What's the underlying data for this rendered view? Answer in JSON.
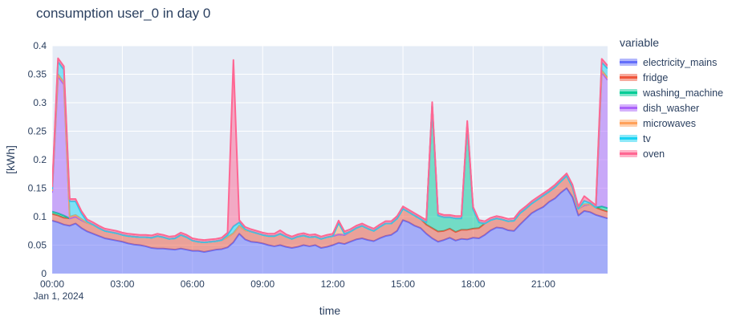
{
  "title": "consumption user_0 in day 0",
  "chart_data": {
    "type": "area",
    "stacked": true,
    "title": "consumption user_0 in day 0",
    "xlabel": "time",
    "ylabel": "[kWh]",
    "legend_title": "variable",
    "x_date_label": "Jan 1, 2024",
    "x_start": "00:00",
    "x_step_minutes": 15,
    "n_points": 96,
    "x_span_hours": 23.75,
    "ylim": [
      0,
      0.4
    ],
    "ytick_values": [
      0,
      0.05,
      0.1,
      0.15,
      0.2,
      0.25,
      0.3,
      0.35,
      0.4
    ],
    "ytick_labels": [
      "0",
      "0.05",
      "0.1",
      "0.15",
      "0.2",
      "0.25",
      "0.3",
      "0.35",
      "0.4"
    ],
    "xtick_hours": [
      0,
      3,
      6,
      9,
      12,
      15,
      18,
      21
    ],
    "xtick_labels": [
      "00:00",
      "03:00",
      "06:00",
      "09:00",
      "12:00",
      "15:00",
      "18:00",
      "21:00"
    ],
    "plot_bg": "#E5ECF6",
    "grid_color": "#FFFFFF",
    "text_color": "#2a3f5f",
    "fill_opacity": 0.5,
    "line_width": 2,
    "series": [
      {
        "name": "electricity_mains",
        "color": "#636EFA",
        "values": [
          0.093,
          0.09,
          0.086,
          0.084,
          0.088,
          0.08,
          0.074,
          0.07,
          0.066,
          0.062,
          0.06,
          0.058,
          0.056,
          0.053,
          0.051,
          0.05,
          0.048,
          0.045,
          0.044,
          0.044,
          0.043,
          0.042,
          0.044,
          0.042,
          0.04,
          0.04,
          0.038,
          0.04,
          0.042,
          0.043,
          0.046,
          0.055,
          0.07,
          0.06,
          0.056,
          0.055,
          0.053,
          0.05,
          0.048,
          0.05,
          0.047,
          0.045,
          0.047,
          0.05,
          0.048,
          0.05,
          0.045,
          0.047,
          0.05,
          0.054,
          0.052,
          0.056,
          0.06,
          0.062,
          0.059,
          0.057,
          0.062,
          0.066,
          0.068,
          0.075,
          0.094,
          0.09,
          0.084,
          0.08,
          0.07,
          0.062,
          0.056,
          0.059,
          0.063,
          0.058,
          0.061,
          0.06,
          0.063,
          0.062,
          0.068,
          0.076,
          0.081,
          0.08,
          0.076,
          0.075,
          0.086,
          0.096,
          0.106,
          0.112,
          0.117,
          0.126,
          0.132,
          0.142,
          0.15,
          0.134,
          0.102,
          0.11,
          0.108,
          0.103,
          0.1,
          0.097
        ]
      },
      {
        "name": "fridge",
        "color": "#EF553B",
        "values": [
          0.012,
          0.012,
          0.012,
          0.013,
          0.012,
          0.014,
          0.015,
          0.016,
          0.014,
          0.013,
          0.013,
          0.013,
          0.012,
          0.013,
          0.014,
          0.014,
          0.016,
          0.018,
          0.022,
          0.02,
          0.018,
          0.02,
          0.024,
          0.022,
          0.018,
          0.016,
          0.017,
          0.016,
          0.015,
          0.016,
          0.018,
          0.016,
          0.014,
          0.016,
          0.018,
          0.016,
          0.015,
          0.016,
          0.018,
          0.02,
          0.018,
          0.016,
          0.018,
          0.017,
          0.016,
          0.015,
          0.016,
          0.017,
          0.016,
          0.015,
          0.016,
          0.018,
          0.02,
          0.022,
          0.02,
          0.018,
          0.02,
          0.022,
          0.02,
          0.022,
          0.02,
          0.018,
          0.018,
          0.016,
          0.016,
          0.018,
          0.018,
          0.016,
          0.016,
          0.015,
          0.016,
          0.017,
          0.016,
          0.018,
          0.02,
          0.018,
          0.016,
          0.015,
          0.016,
          0.018,
          0.02,
          0.018,
          0.017,
          0.018,
          0.02,
          0.018,
          0.02,
          0.02,
          0.022,
          0.018,
          0.012,
          0.01,
          0.014,
          0.013,
          0.012,
          0.012
        ]
      },
      {
        "name": "washing_machine",
        "color": "#00CC96",
        "values": [
          0.004,
          0.004,
          0.004,
          0,
          0,
          0,
          0,
          0,
          0,
          0,
          0,
          0,
          0,
          0,
          0,
          0,
          0,
          0,
          0,
          0,
          0,
          0,
          0,
          0,
          0,
          0,
          0,
          0,
          0,
          0,
          0,
          0,
          0,
          0,
          0,
          0,
          0,
          0,
          0,
          0,
          0,
          0,
          0,
          0,
          0,
          0,
          0,
          0,
          0,
          0,
          0,
          0,
          0,
          0,
          0,
          0,
          0,
          0,
          0,
          0,
          0,
          0,
          0,
          0,
          0.004,
          0.215,
          0.028,
          0.024,
          0.02,
          0.024,
          0.02,
          0.185,
          0.034,
          0.01,
          0,
          0,
          0,
          0,
          0,
          0,
          0,
          0,
          0,
          0,
          0,
          0,
          0,
          0,
          0,
          0,
          0,
          0,
          0,
          0,
          0.006,
          0.006
        ]
      },
      {
        "name": "dish_washer",
        "color": "#AB63FA",
        "values": [
          0.033,
          0.24,
          0.23,
          0,
          0,
          0,
          0,
          0,
          0,
          0,
          0,
          0,
          0,
          0,
          0,
          0,
          0,
          0,
          0,
          0,
          0,
          0,
          0,
          0,
          0,
          0,
          0,
          0,
          0,
          0,
          0,
          0,
          0,
          0,
          0,
          0,
          0,
          0,
          0,
          0,
          0,
          0,
          0,
          0,
          0,
          0,
          0,
          0,
          0,
          0,
          0,
          0,
          0,
          0,
          0,
          0,
          0,
          0,
          0,
          0,
          0,
          0,
          0,
          0,
          0,
          0,
          0,
          0,
          0,
          0,
          0,
          0,
          0,
          0,
          0,
          0,
          0,
          0,
          0,
          0,
          0,
          0,
          0,
          0,
          0,
          0,
          0,
          0,
          0,
          0,
          0,
          0,
          0,
          0,
          0.235,
          0.225
        ]
      },
      {
        "name": "microwaves",
        "color": "#FFA15A",
        "values": [
          0.003,
          0.004,
          0.004,
          0.003,
          0.003,
          0.002,
          0,
          0,
          0,
          0,
          0,
          0,
          0,
          0,
          0,
          0,
          0,
          0,
          0,
          0,
          0,
          0,
          0,
          0,
          0,
          0,
          0,
          0,
          0,
          0,
          0,
          0,
          0,
          0,
          0,
          0,
          0,
          0,
          0,
          0,
          0,
          0,
          0,
          0,
          0,
          0,
          0,
          0,
          0,
          0.02,
          0.002,
          0,
          0,
          0,
          0,
          0,
          0,
          0,
          0,
          0,
          0,
          0,
          0,
          0,
          0,
          0,
          0,
          0,
          0,
          0,
          0,
          0,
          0,
          0,
          0,
          0,
          0,
          0,
          0,
          0,
          0,
          0,
          0,
          0,
          0,
          0,
          0,
          0,
          0,
          0,
          0,
          0.002,
          0,
          0,
          0.004,
          0.004
        ]
      },
      {
        "name": "tv",
        "color": "#19D3F3",
        "values": [
          0.003,
          0.022,
          0.022,
          0.027,
          0.024,
          0.01,
          0.002,
          0,
          0,
          0,
          0,
          0,
          0,
          0,
          0,
          0,
          0,
          0,
          0,
          0,
          0,
          0,
          0,
          0,
          0,
          0,
          0,
          0,
          0,
          0,
          0.004,
          0.012,
          0.006,
          0.002,
          0,
          0,
          0,
          0,
          0,
          0,
          0,
          0,
          0,
          0,
          0,
          0,
          0,
          0,
          0,
          0,
          0,
          0,
          0,
          0,
          0,
          0,
          0,
          0,
          0,
          0,
          0,
          0,
          0,
          0,
          0,
          0,
          0,
          0,
          0,
          0,
          0,
          0,
          0,
          0,
          0,
          0,
          0,
          0,
          0,
          0,
          0,
          0,
          0,
          0,
          0,
          0,
          0,
          0,
          0,
          0,
          0,
          0.006,
          0.002,
          0,
          0.014,
          0.016
        ]
      },
      {
        "name": "oven",
        "color": "#FF6692",
        "values": [
          0.004,
          0.006,
          0.006,
          0.004,
          0.004,
          0.004,
          0.004,
          0.004,
          0.004,
          0.004,
          0.004,
          0.004,
          0.004,
          0.004,
          0.004,
          0.004,
          0.004,
          0.004,
          0.004,
          0.004,
          0.004,
          0.004,
          0.004,
          0.004,
          0.004,
          0.004,
          0.004,
          0.004,
          0.004,
          0.004,
          0.004,
          0.292,
          0.004,
          0.004,
          0.004,
          0.004,
          0.004,
          0.004,
          0.004,
          0.006,
          0.004,
          0.004,
          0.004,
          0.004,
          0.004,
          0.004,
          0.004,
          0.004,
          0.004,
          0.004,
          0.004,
          0.004,
          0.004,
          0.004,
          0.004,
          0.004,
          0.004,
          0.004,
          0.004,
          0.004,
          0.004,
          0.004,
          0.004,
          0.004,
          0.004,
          0.006,
          0.004,
          0.004,
          0.004,
          0.004,
          0.004,
          0.006,
          0.004,
          0.004,
          0.004,
          0.004,
          0.004,
          0.004,
          0.004,
          0.004,
          0.004,
          0.004,
          0.004,
          0.004,
          0.004,
          0.004,
          0.004,
          0.004,
          0.004,
          0.004,
          0.004,
          0.008,
          0.004,
          0.004,
          0.006,
          0.005
        ]
      }
    ]
  }
}
